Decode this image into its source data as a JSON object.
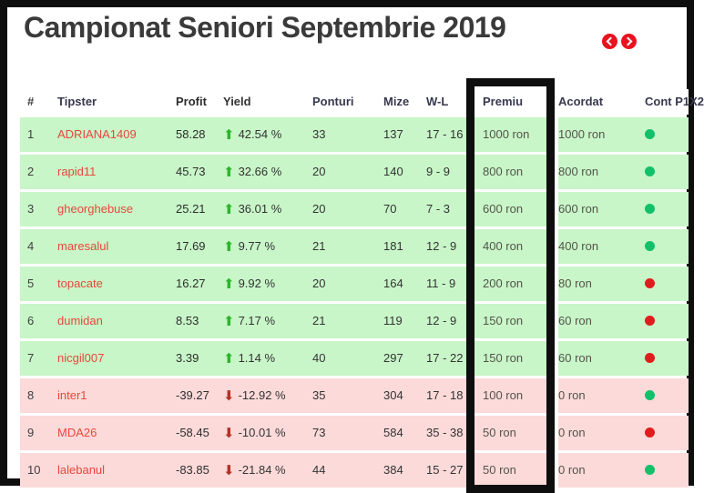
{
  "title": "Campionat Seniori Septembrie 2019",
  "nav": {
    "prev_icon": "chevron-left",
    "next_icon": "chevron-right"
  },
  "annotation": {
    "highlighted_column": "Premiu"
  },
  "colors": {
    "frame_black": "#0e0e0e",
    "row_positive_bg": "#c8f6c8",
    "row_negative_bg": "#fcdada",
    "tipster_link_red": "#e8473b",
    "trend_up_green": "#2db42d",
    "trend_down_red": "#b23226",
    "dot_green": "#12c06a",
    "dot_red": "#e01d1d",
    "nav_button_red": "#e8131f",
    "header_text": "#38384f"
  },
  "table": {
    "headers": {
      "rank": "#",
      "tipster": "Tipster",
      "profit": "Profit",
      "yield": "Yield",
      "ponturi": "Ponturi",
      "mize": "Mize",
      "wl": "W-L",
      "premiu": "Premiu",
      "acordat": "Acordat",
      "cont": "Cont P1X2"
    },
    "rows": [
      {
        "rank": "1",
        "tipster": "ADRIANA1409",
        "profit": "58.28",
        "yield": "42.54 %",
        "trend": "up",
        "ponturi": "33",
        "mize": "137",
        "wl": "17 - 16",
        "premiu": "1000 ron",
        "acordat": "1000 ron",
        "cont_status": "green",
        "tone": "positive"
      },
      {
        "rank": "2",
        "tipster": "rapid11",
        "profit": "45.73",
        "yield": "32.66 %",
        "trend": "up",
        "ponturi": "20",
        "mize": "140",
        "wl": "9 - 9",
        "premiu": "800 ron",
        "acordat": "800 ron",
        "cont_status": "green",
        "tone": "positive"
      },
      {
        "rank": "3",
        "tipster": "gheorghebuse",
        "profit": "25.21",
        "yield": "36.01 %",
        "trend": "up",
        "ponturi": "20",
        "mize": "70",
        "wl": "7 - 3",
        "premiu": "600 ron",
        "acordat": "600 ron",
        "cont_status": "green",
        "tone": "positive"
      },
      {
        "rank": "4",
        "tipster": "maresalul",
        "profit": "17.69",
        "yield": "9.77 %",
        "trend": "up",
        "ponturi": "21",
        "mize": "181",
        "wl": "12 - 9",
        "premiu": "400 ron",
        "acordat": "400 ron",
        "cont_status": "green",
        "tone": "positive"
      },
      {
        "rank": "5",
        "tipster": "topacate",
        "profit": "16.27",
        "yield": "9.92 %",
        "trend": "up",
        "ponturi": "20",
        "mize": "164",
        "wl": "11 - 9",
        "premiu": "200 ron",
        "acordat": "80 ron",
        "cont_status": "red",
        "tone": "positive"
      },
      {
        "rank": "6",
        "tipster": "dumidan",
        "profit": "8.53",
        "yield": "7.17 %",
        "trend": "up",
        "ponturi": "21",
        "mize": "119",
        "wl": "12 - 9",
        "premiu": "150 ron",
        "acordat": "60 ron",
        "cont_status": "red",
        "tone": "positive"
      },
      {
        "rank": "7",
        "tipster": "nicgil007",
        "profit": "3.39",
        "yield": "1.14 %",
        "trend": "up",
        "ponturi": "40",
        "mize": "297",
        "wl": "17 - 22",
        "premiu": "150 ron",
        "acordat": "60 ron",
        "cont_status": "red",
        "tone": "positive"
      },
      {
        "rank": "8",
        "tipster": "inter1",
        "profit": "-39.27",
        "yield": "-12.92 %",
        "trend": "down",
        "ponturi": "35",
        "mize": "304",
        "wl": "17 - 18",
        "premiu": "100 ron",
        "acordat": "0 ron",
        "cont_status": "green",
        "tone": "negative"
      },
      {
        "rank": "9",
        "tipster": "MDA26",
        "profit": "-58.45",
        "yield": "-10.01 %",
        "trend": "down",
        "ponturi": "73",
        "mize": "584",
        "wl": "35 - 38",
        "premiu": "50 ron",
        "acordat": "0 ron",
        "cont_status": "red",
        "tone": "negative"
      },
      {
        "rank": "10",
        "tipster": "lalebanul",
        "profit": "-83.85",
        "yield": "-21.84 %",
        "trend": "down",
        "ponturi": "44",
        "mize": "384",
        "wl": "15 - 27",
        "premiu": "50 ron",
        "acordat": "0 ron",
        "cont_status": "green",
        "tone": "negative"
      }
    ]
  }
}
